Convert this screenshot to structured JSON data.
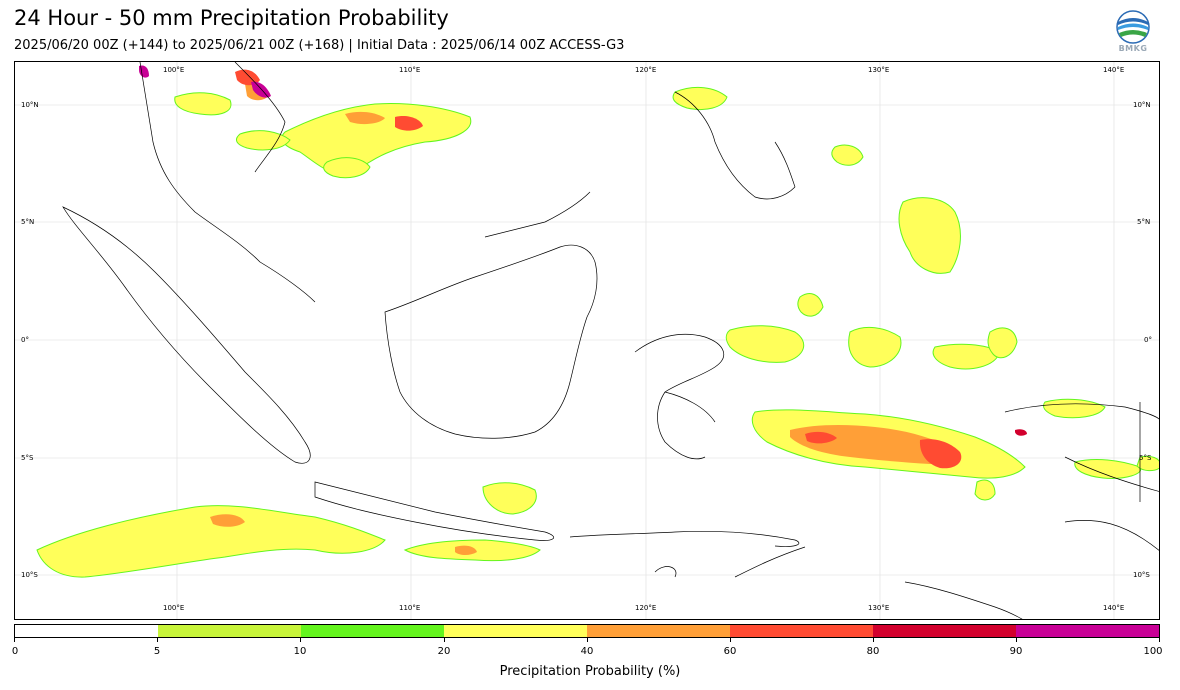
{
  "header": {
    "title": "24 Hour - 50 mm Precipitation Probability",
    "subtitle": "2025/06/20 00Z (+144) to 2025/06/21 00Z (+168) | Initial Data : 2025/06/14 00Z ACCESS-G3",
    "logo_text": "BMKG"
  },
  "map": {
    "lon_labels_top": [
      "100°E",
      "110°E",
      "120°E",
      "130°E",
      "140°E"
    ],
    "lon_labels_bottom": [
      "100°E",
      "110°E",
      "120°E",
      "130°E",
      "140°E"
    ],
    "lat_labels_left": [
      "10°N",
      "5°N",
      "0°",
      "5°S",
      "10°S"
    ],
    "lat_labels_right": [
      "10°N",
      "5°N",
      "0°",
      "5°S",
      "10°S"
    ]
  },
  "colorbar": {
    "title": "Precipitation Probability (%)",
    "tick_labels": [
      "0",
      "5",
      "10",
      "20",
      "40",
      "60",
      "80",
      "90",
      "100"
    ],
    "colors": [
      "#ffffff",
      "#c8f53a",
      "#64f51e",
      "#ffff5a",
      "#ff9f37",
      "#ff4b32",
      "#d2002d",
      "#c80096"
    ]
  }
}
